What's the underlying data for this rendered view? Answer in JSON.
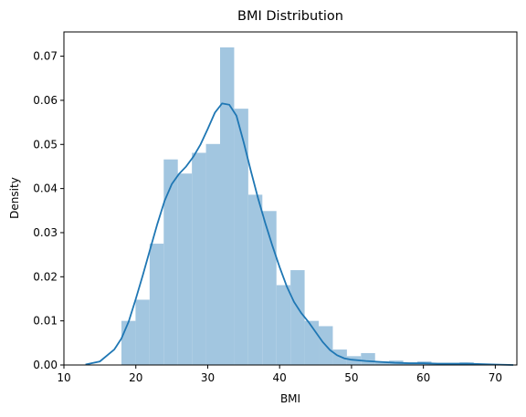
{
  "chart_data": {
    "type": "bar",
    "title": "BMI Distribution",
    "xlabel": "BMI",
    "ylabel": "Density",
    "xlim": [
      10,
      73
    ],
    "ylim": [
      0,
      0.0755
    ],
    "xticks": [
      10,
      20,
      30,
      40,
      50,
      60,
      70
    ],
    "yticks": [
      0.0,
      0.01,
      0.02,
      0.03,
      0.04,
      0.05,
      0.06,
      0.07
    ],
    "ytick_labels": [
      "0.00",
      "0.01",
      "0.02",
      "0.03",
      "0.04",
      "0.05",
      "0.06",
      "0.07"
    ],
    "grid": false,
    "histogram": {
      "bin_edges": [
        18.0,
        19.96,
        21.92,
        23.88,
        25.84,
        27.8,
        29.76,
        31.72,
        33.68,
        35.64,
        37.6,
        39.56,
        41.52,
        43.48,
        45.44,
        47.4,
        49.36,
        51.32,
        53.28,
        55.24,
        57.2,
        59.16,
        61.12,
        63.08,
        65.04,
        67.0,
        68.96
      ],
      "density": [
        0.01,
        0.0148,
        0.0275,
        0.0466,
        0.0434,
        0.0481,
        0.0501,
        0.072,
        0.0581,
        0.0386,
        0.0349,
        0.0181,
        0.0215,
        0.01,
        0.0088,
        0.0035,
        0.002,
        0.0027,
        0.0008,
        0.001,
        0.0004,
        0.0008,
        0.0002,
        0.0002,
        0.0006,
        0.0002
      ],
      "color": "#a2c6e0"
    },
    "kde": {
      "x": [
        13,
        15,
        17,
        18,
        19,
        20,
        21,
        22,
        23,
        24,
        25,
        26,
        27,
        28,
        29,
        30,
        31,
        32,
        33,
        34,
        35,
        36,
        37,
        38,
        39,
        40,
        41,
        42,
        43,
        44,
        45,
        46,
        47,
        48,
        49,
        50,
        52,
        54,
        56,
        58,
        60,
        62,
        64,
        66,
        68,
        70,
        72.5
      ],
      "y": [
        0.0001,
        0.0008,
        0.0035,
        0.006,
        0.0098,
        0.015,
        0.0205,
        0.0263,
        0.032,
        0.0372,
        0.041,
        0.0433,
        0.045,
        0.0472,
        0.05,
        0.0535,
        0.0572,
        0.0593,
        0.059,
        0.0565,
        0.0505,
        0.044,
        0.0378,
        0.0322,
        0.027,
        0.0222,
        0.0178,
        0.0143,
        0.0118,
        0.0098,
        0.0075,
        0.0052,
        0.0034,
        0.0022,
        0.0015,
        0.0012,
        0.0009,
        0.0007,
        0.0005,
        0.0004,
        0.0004,
        0.0003,
        0.0003,
        0.0003,
        0.0002,
        0.0001,
        0.0
      ],
      "color": "#1f77b4"
    }
  }
}
